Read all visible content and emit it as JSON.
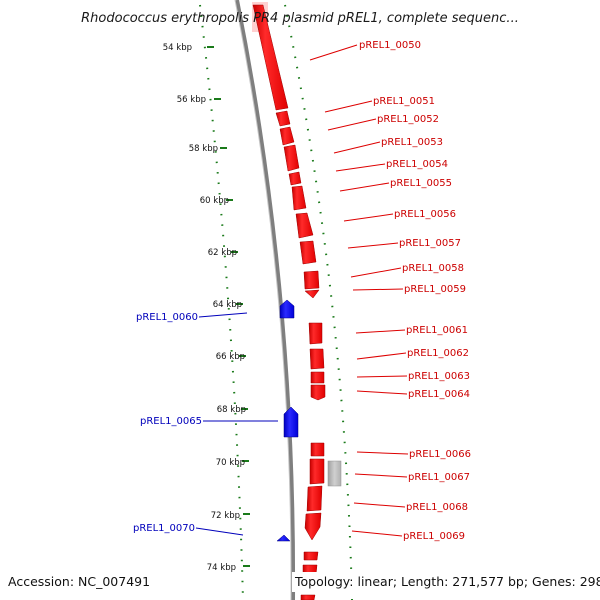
{
  "title": "Rhodococcus erythropolis PR4 plasmid pREL1, complete sequenc...",
  "accession": "Accession: NC_007491",
  "topology": "Topology: linear; Length: 271,577 bp; Genes: 298",
  "colors": {
    "forward": "#ff0000",
    "reverse": "#0000ff",
    "other": "#bbbbbb",
    "ticks": "#1a7a1a",
    "backbone": "#7f7f7f"
  },
  "kbp_labels": [
    "54 kbp",
    "56 kbp",
    "58 kbp",
    "60 kbp",
    "62 kbp",
    "64 kbp",
    "66 kbp",
    "68 kbp",
    "70 kbp",
    "72 kbp",
    "74 kbp"
  ],
  "forward_genes": [
    "pREL1_0050",
    "pREL1_0051",
    "pREL1_0052",
    "pREL1_0053",
    "pREL1_0054",
    "pREL1_0055",
    "pREL1_0056",
    "pREL1_0057",
    "pREL1_0058",
    "pREL1_0059",
    "pREL1_0061",
    "pREL1_0062",
    "pREL1_0063",
    "pREL1_0064",
    "pREL1_0066",
    "pREL1_0067",
    "pREL1_0068",
    "pREL1_0069"
  ],
  "reverse_genes": [
    "pREL1_0060",
    "pREL1_0065",
    "pREL1_0070"
  ]
}
